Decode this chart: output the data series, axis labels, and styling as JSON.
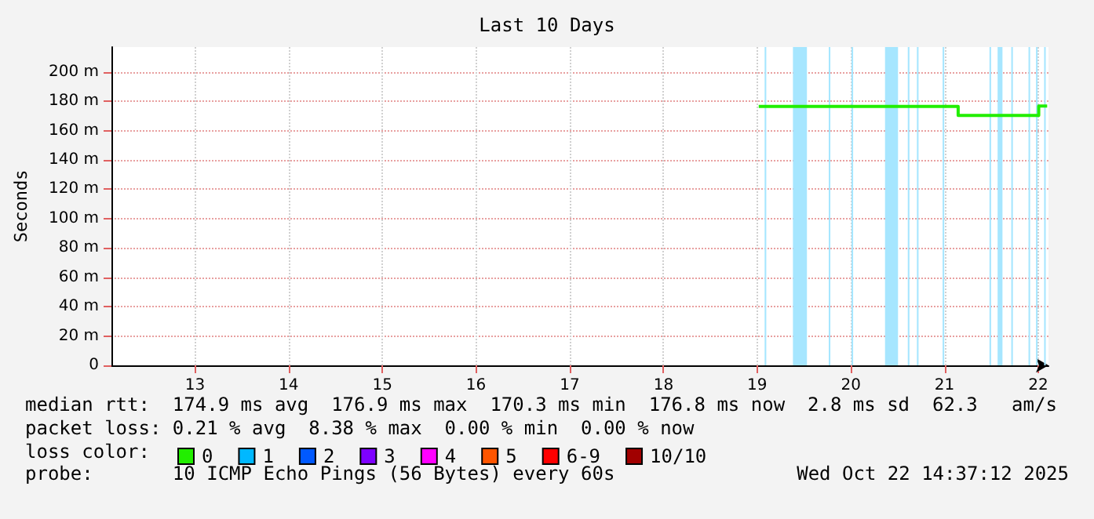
{
  "chart_data": {
    "type": "step",
    "title": "Last 10 Days",
    "ylabel": "Seconds",
    "xlim": [
      "2025-10-12T14:37",
      "2025-10-22T14:37"
    ],
    "xticks": [
      {
        "value": "2025-10-13T12:00",
        "label": "13"
      },
      {
        "value": "2025-10-14T12:00",
        "label": "14"
      },
      {
        "value": "2025-10-15T12:00",
        "label": "15"
      },
      {
        "value": "2025-10-16T12:00",
        "label": "16"
      },
      {
        "value": "2025-10-17T12:00",
        "label": "17"
      },
      {
        "value": "2025-10-18T12:00",
        "label": "18"
      },
      {
        "value": "2025-10-19T12:00",
        "label": "19"
      },
      {
        "value": "2025-10-20T12:00",
        "label": "20"
      },
      {
        "value": "2025-10-21T12:00",
        "label": "21"
      },
      {
        "value": "2025-10-22T12:00",
        "label": "22"
      }
    ],
    "ylim": [
      0,
      217
    ],
    "yticks": [
      0,
      {
        "value": 20,
        "label": "20 m"
      },
      {
        "value": 40,
        "label": "40 m"
      },
      {
        "value": 60,
        "label": "60 m"
      },
      {
        "value": 80,
        "label": "80 m"
      },
      {
        "value": 100,
        "label": "100 m"
      },
      {
        "value": 120,
        "label": "120 m"
      },
      {
        "value": 140,
        "label": "140 m"
      },
      {
        "value": 160,
        "label": "160 m"
      },
      {
        "value": 180,
        "label": "180 m"
      },
      {
        "value": 200,
        "label": "200 m"
      }
    ],
    "grid": true,
    "marker": "none",
    "legend": "bottom",
    "legend_title": "loss color:",
    "series": [
      {
        "name": "0",
        "color": "#22ee00",
        "x": [
          "2025-10-19T12:24",
          "2025-10-21T15:29",
          "2025-10-22T12:07",
          "2025-10-22T14:17"
        ],
        "values": [
          176.5,
          170.4,
          176.8,
          176.8
        ]
      },
      {
        "name": "1",
        "color": "#00b8ff"
      },
      {
        "name": "2",
        "color": "#0059ff"
      },
      {
        "name": "3",
        "color": "#7e00ff"
      },
      {
        "name": "4",
        "color": "#ff00ff"
      },
      {
        "name": "5",
        "color": "#ff5500"
      },
      {
        "name": "6-9",
        "color": "#ff0000"
      },
      {
        "name": "10/10",
        "color": "#a10000"
      }
    ],
    "bands": [
      {
        "axis": "x",
        "from": "2025-10-19T13:55",
        "to": "2025-10-19T14:20",
        "color": "#a6e6ff"
      },
      {
        "axis": "x",
        "from": "2025-10-19T21:10",
        "to": "2025-10-20T00:45",
        "color": "#a6e6ff"
      },
      {
        "axis": "x",
        "from": "2025-10-20T06:20",
        "to": "2025-10-20T06:45",
        "color": "#a6e6ff"
      },
      {
        "axis": "x",
        "from": "2025-10-20T12:10",
        "to": "2025-10-20T12:35",
        "color": "#a6e6ff"
      },
      {
        "axis": "x",
        "from": "2025-10-20T20:45",
        "to": "2025-10-21T00:05",
        "color": "#a6e6ff"
      },
      {
        "axis": "x",
        "from": "2025-10-21T02:35",
        "to": "2025-10-21T03:00",
        "color": "#a6e6ff"
      },
      {
        "axis": "x",
        "from": "2025-10-21T04:55",
        "to": "2025-10-21T05:20",
        "color": "#a6e6ff"
      },
      {
        "axis": "x",
        "from": "2025-10-21T11:30",
        "to": "2025-10-21T11:55",
        "color": "#a6e6ff"
      },
      {
        "axis": "x",
        "from": "2025-10-21T23:30",
        "to": "2025-10-21T23:55",
        "color": "#a6e6ff"
      },
      {
        "axis": "x",
        "from": "2025-10-22T01:35",
        "to": "2025-10-22T02:50",
        "color": "#a6e6ff"
      },
      {
        "axis": "x",
        "from": "2025-10-22T05:05",
        "to": "2025-10-22T05:30",
        "color": "#a6e6ff"
      },
      {
        "axis": "x",
        "from": "2025-10-22T09:30",
        "to": "2025-10-22T09:55",
        "color": "#a6e6ff"
      },
      {
        "axis": "x",
        "from": "2025-10-22T11:25",
        "to": "2025-10-22T11:50",
        "color": "#a6e6ff"
      },
      {
        "axis": "x",
        "from": "2025-10-22T13:30",
        "to": "2025-10-22T13:55",
        "color": "#a6e6ff"
      }
    ],
    "annotations": [
      "median rtt:  174.9 ms avg  176.9 ms max  170.3 ms min  176.8 ms now  2.8 ms sd  62.3   am/s",
      "packet loss: 0.21 % avg  8.38 % max  0.00 % min  0.00 % now",
      "probe:       10 ICMP Echo Pings (56 Bytes) every 60s",
      "Wed Oct 22 14:37:12 2025"
    ]
  }
}
